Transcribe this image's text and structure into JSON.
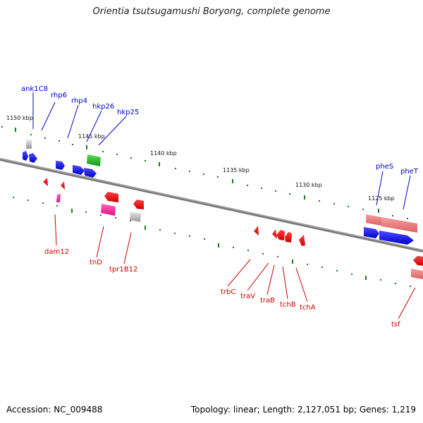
{
  "title": "Orientia tsutsugamushi Boryong, complete genome",
  "footer": {
    "accession": "Accession: NC_009488",
    "summary": "Topology: linear; Length: 2,127,051 bp; Genes: 1,219"
  },
  "scale_labels": [
    "1150 kbp",
    "1145 kbp",
    "1140 kbp",
    "1135 kbp",
    "1130 kbp",
    "1125 kbp"
  ],
  "top_genes": [
    "ank1C8",
    "rhp6",
    "rhp4",
    "hkp26",
    "hkp25",
    "pheS",
    "pheT"
  ],
  "bottom_genes": [
    "dam12",
    "tnD",
    "tpr1B12",
    "trbC",
    "traV",
    "traB",
    "tchB",
    "tchA",
    "tsf"
  ],
  "colors": {
    "plus_strand": "#0000ee",
    "minus_strand": "#ee0000",
    "rna": "#ee8888",
    "pseudo": "#bbbbbb",
    "magenta": "#ee2299",
    "green": "#22bb22",
    "tick": "#1a7a1a",
    "backbone": "#888888"
  }
}
